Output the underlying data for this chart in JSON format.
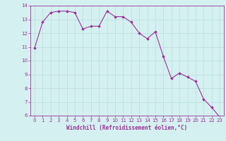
{
  "x": [
    0,
    1,
    2,
    3,
    4,
    5,
    6,
    7,
    8,
    9,
    10,
    11,
    12,
    13,
    14,
    15,
    16,
    17,
    18,
    19,
    20,
    21,
    22,
    23
  ],
  "y": [
    10.9,
    12.8,
    13.5,
    13.6,
    13.6,
    13.5,
    12.3,
    12.5,
    12.5,
    13.6,
    13.2,
    13.2,
    12.8,
    12.0,
    11.6,
    12.1,
    10.3,
    8.7,
    9.1,
    8.8,
    8.5,
    7.2,
    6.6,
    5.9
  ],
  "line_color": "#993399",
  "marker": "D",
  "marker_size": 1.8,
  "line_width": 0.8,
  "background_color": "#d5f0f0",
  "grid_color": "#b8dede",
  "xlabel": "Windchill (Refroidissement éolien,°C)",
  "xlabel_color": "#993399",
  "tick_color": "#993399",
  "ylim": [
    6,
    14
  ],
  "xlim": [
    -0.5,
    23.5
  ],
  "yticks": [
    6,
    7,
    8,
    9,
    10,
    11,
    12,
    13,
    14
  ],
  "xticks": [
    0,
    1,
    2,
    3,
    4,
    5,
    6,
    7,
    8,
    9,
    10,
    11,
    12,
    13,
    14,
    15,
    16,
    17,
    18,
    19,
    20,
    21,
    22,
    23
  ],
  "tick_fontsize": 5.0,
  "xlabel_fontsize": 5.5
}
